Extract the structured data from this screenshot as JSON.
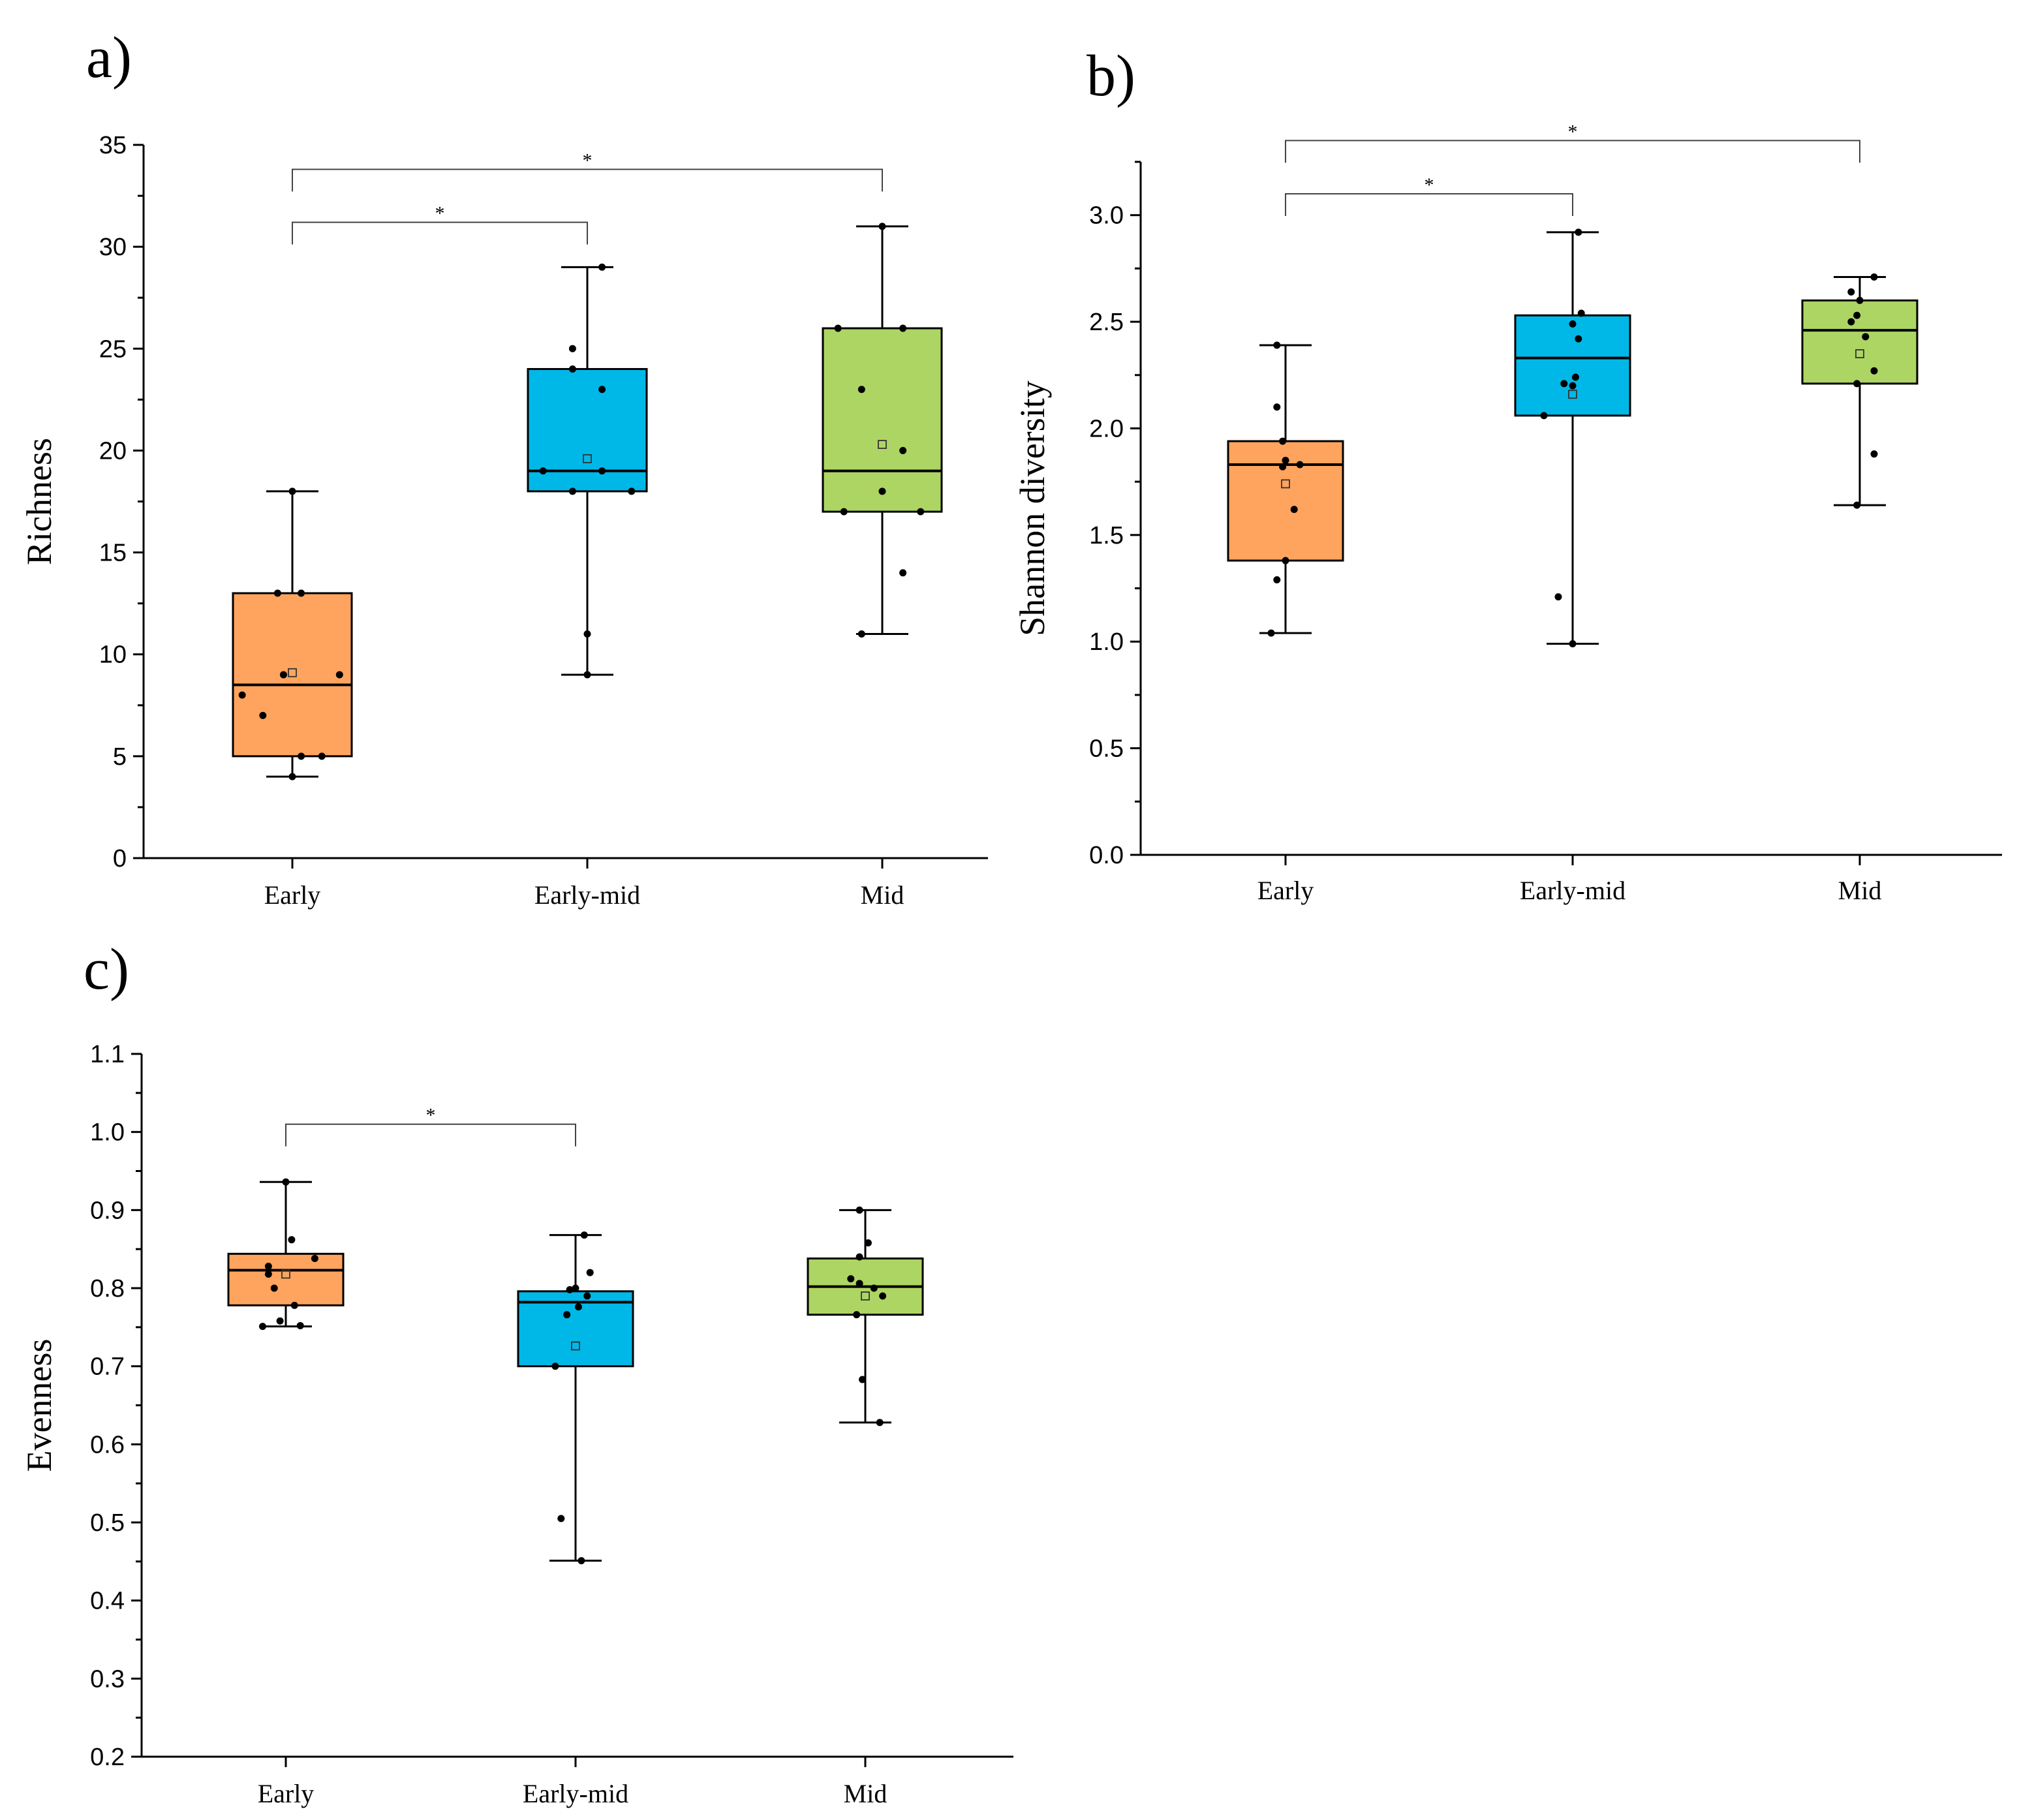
{
  "chart_data": [
    {
      "type": "box",
      "panel": "a)",
      "ylabel": "Richness",
      "xlabel": "",
      "categories": [
        "Early",
        "Early-mid",
        "Mid"
      ],
      "ylim": [
        0,
        35
      ],
      "yticks": [
        0,
        5,
        10,
        15,
        20,
        25,
        30,
        35
      ],
      "ytick_labels": [
        "0",
        "5",
        "10",
        "15",
        "20",
        "25",
        "30",
        "35"
      ],
      "boxes": [
        {
          "category": "Early",
          "color": "#FFA45E",
          "q1": 5,
          "median": 8.5,
          "q3": 13,
          "whisker_low": 4,
          "whisker_high": 18,
          "mean": 9.1,
          "points": [
            [
              -0.17,
              8
            ],
            [
              -0.1,
              7
            ],
            [
              -0.03,
              9
            ],
            [
              0.03,
              13
            ],
            [
              0.16,
              9
            ],
            [
              -0.05,
              13
            ],
            [
              0.03,
              5
            ],
            [
              0.1,
              5
            ],
            [
              0,
              4
            ],
            [
              0,
              18
            ]
          ]
        },
        {
          "category": "Early-mid",
          "color": "#00B8E8",
          "q1": 18,
          "median": 19,
          "q3": 24,
          "whisker_low": 9,
          "whisker_high": 29,
          "mean": 19.6,
          "points": [
            [
              -0.15,
              19
            ],
            [
              -0.05,
              25
            ],
            [
              -0.05,
              24
            ],
            [
              0.05,
              23
            ],
            [
              0.05,
              19
            ],
            [
              -0.05,
              18
            ],
            [
              0.15,
              18
            ],
            [
              0,
              11
            ],
            [
              0,
              9
            ],
            [
              0.05,
              29
            ]
          ]
        },
        {
          "category": "Mid",
          "color": "#ADD563",
          "q1": 17,
          "median": 19,
          "q3": 26,
          "whisker_low": 11,
          "whisker_high": 31,
          "mean": 20.3,
          "points": [
            [
              -0.15,
              26
            ],
            [
              0.07,
              26
            ],
            [
              -0.07,
              23
            ],
            [
              0.07,
              20
            ],
            [
              0,
              18
            ],
            [
              -0.13,
              17
            ],
            [
              0.13,
              17
            ],
            [
              0.07,
              14
            ],
            [
              -0.07,
              11
            ],
            [
              0,
              31
            ]
          ]
        }
      ],
      "significance": [
        {
          "from": "Early",
          "to": "Early-mid",
          "y": 31.2,
          "label": "*"
        },
        {
          "from": "Early",
          "to": "Mid",
          "y": 33.8,
          "label": "*"
        }
      ]
    },
    {
      "type": "box",
      "panel": "b)",
      "ylabel": "Shannon  diversity",
      "xlabel": "",
      "categories": [
        "Early",
        "Early-mid",
        "Mid"
      ],
      "ylim": [
        0,
        3.25
      ],
      "yticks": [
        0,
        0.5,
        1.0,
        1.5,
        2.0,
        2.5,
        3.0
      ],
      "ytick_labels": [
        "0.0",
        "0.5",
        "1.0",
        "1.5",
        "2.0",
        "2.5",
        "3.0"
      ],
      "boxes": [
        {
          "category": "Early",
          "color": "#FFA45E",
          "q1": 1.38,
          "median": 1.83,
          "q3": 1.94,
          "whisker_low": 1.04,
          "whisker_high": 2.39,
          "mean": 1.74,
          "points": [
            [
              -0.03,
              2.39
            ],
            [
              -0.03,
              2.1
            ],
            [
              -0.01,
              1.94
            ],
            [
              0,
              1.85
            ],
            [
              0.05,
              1.83
            ],
            [
              -0.01,
              1.82
            ],
            [
              0.03,
              1.62
            ],
            [
              0,
              1.38
            ],
            [
              -0.03,
              1.29
            ],
            [
              -0.05,
              1.04
            ]
          ]
        },
        {
          "category": "Early-mid",
          "color": "#00B8E8",
          "q1": 2.06,
          "median": 2.33,
          "q3": 2.53,
          "whisker_low": 0.99,
          "whisker_high": 2.92,
          "mean": 2.16,
          "points": [
            [
              0.02,
              2.92
            ],
            [
              0.03,
              2.54
            ],
            [
              0,
              2.49
            ],
            [
              0.02,
              2.42
            ],
            [
              0.01,
              2.24
            ],
            [
              -0.03,
              2.21
            ],
            [
              0,
              2.2
            ],
            [
              -0.1,
              2.06
            ],
            [
              -0.05,
              1.21
            ],
            [
              0,
              0.99
            ]
          ]
        },
        {
          "category": "Mid",
          "color": "#ADD563",
          "q1": 2.21,
          "median": 2.46,
          "q3": 2.6,
          "whisker_low": 1.64,
          "whisker_high": 2.71,
          "mean": 2.35,
          "points": [
            [
              0.05,
              2.71
            ],
            [
              -0.03,
              2.64
            ],
            [
              0,
              2.6
            ],
            [
              -0.01,
              2.53
            ],
            [
              -0.03,
              2.5
            ],
            [
              0.02,
              2.43
            ],
            [
              0.05,
              2.27
            ],
            [
              -0.01,
              2.21
            ],
            [
              0.05,
              1.88
            ],
            [
              -0.01,
              1.64
            ]
          ]
        }
      ],
      "significance": [
        {
          "from": "Early",
          "to": "Early-mid",
          "y": 3.1,
          "label": "*"
        },
        {
          "from": "Early",
          "to": "Mid",
          "y": 3.35,
          "label": "*"
        }
      ]
    },
    {
      "type": "box",
      "panel": "c)",
      "ylabel": "Evenness",
      "xlabel": "",
      "categories": [
        "Early",
        "Early-mid",
        "Mid"
      ],
      "ylim": [
        0.2,
        1.1
      ],
      "yticks": [
        0.2,
        0.3,
        0.4,
        0.5,
        0.6,
        0.7,
        0.8,
        0.9,
        1.0,
        1.1
      ],
      "ytick_labels": [
        "0.2",
        "0.3",
        "0.4",
        "0.5",
        "0.6",
        "0.7",
        "0.8",
        "0.9",
        "1.0",
        "1.1"
      ],
      "boxes": [
        {
          "category": "Early",
          "color": "#FFA45E",
          "q1": 0.778,
          "median": 0.823,
          "q3": 0.844,
          "whisker_low": 0.751,
          "whisker_high": 0.936,
          "mean": 0.818,
          "points": [
            [
              0,
              0.936
            ],
            [
              0.02,
              0.862
            ],
            [
              0.1,
              0.838
            ],
            [
              -0.06,
              0.828
            ],
            [
              -0.06,
              0.818
            ],
            [
              -0.04,
              0.8
            ],
            [
              0.03,
              0.778
            ],
            [
              -0.02,
              0.758
            ],
            [
              -0.08,
              0.751
            ],
            [
              0.05,
              0.752
            ]
          ]
        },
        {
          "category": "Early-mid",
          "color": "#00B8E8",
          "q1": 0.7,
          "median": 0.782,
          "q3": 0.796,
          "whisker_low": 0.451,
          "whisker_high": 0.868,
          "mean": 0.726,
          "points": [
            [
              0.03,
              0.868
            ],
            [
              0.05,
              0.82
            ],
            [
              -0.02,
              0.798
            ],
            [
              0.04,
              0.79
            ],
            [
              0.01,
              0.776
            ],
            [
              -0.03,
              0.766
            ],
            [
              -0.07,
              0.7
            ],
            [
              -0.05,
              0.505
            ],
            [
              0.02,
              0.451
            ],
            [
              0,
              0.8
            ]
          ]
        },
        {
          "category": "Mid",
          "color": "#ADD563",
          "q1": 0.766,
          "median": 0.802,
          "q3": 0.838,
          "whisker_low": 0.628,
          "whisker_high": 0.9,
          "mean": 0.79,
          "points": [
            [
              -0.02,
              0.9
            ],
            [
              0.01,
              0.858
            ],
            [
              -0.02,
              0.84
            ],
            [
              -0.05,
              0.812
            ],
            [
              -0.02,
              0.806
            ],
            [
              0.03,
              0.8
            ],
            [
              0.06,
              0.79
            ],
            [
              -0.03,
              0.766
            ],
            [
              -0.01,
              0.683
            ],
            [
              0.05,
              0.628
            ]
          ]
        }
      ],
      "significance": [
        {
          "from": "Early",
          "to": "Early-mid",
          "y": 1.01,
          "label": "*"
        }
      ]
    }
  ]
}
